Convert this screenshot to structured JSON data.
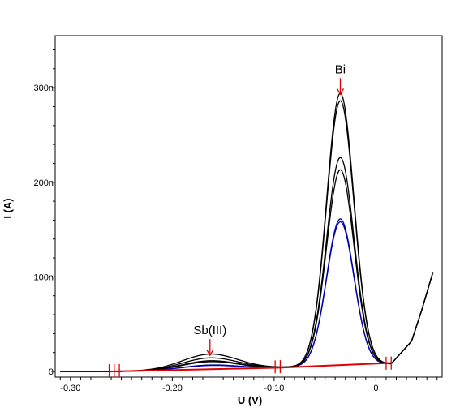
{
  "chart_data": {
    "type": "line",
    "xlabel": "U (V)",
    "ylabel": "I (A)",
    "xlim": [
      -0.315,
      0.065
    ],
    "ylim": [
      -6e-09,
      3.55e-07
    ],
    "grid": false,
    "x_ticks": [
      {
        "value": -0.3,
        "label": "-0.30"
      },
      {
        "value": -0.2,
        "label": "-0.20"
      },
      {
        "value": -0.1,
        "label": "-0.10"
      },
      {
        "value": 0.0,
        "label": "0"
      }
    ],
    "y_ticks": [
      {
        "value": 0,
        "label": "0"
      },
      {
        "value": 1e-07,
        "label": "100n"
      },
      {
        "value": 2e-07,
        "label": "200n"
      },
      {
        "value": 3e-07,
        "label": "300n"
      }
    ],
    "series": [
      {
        "color": "#0000aa",
        "sb_peak": 4.5e-09,
        "bi_peak": 1.55e-07
      },
      {
        "color": "#0000aa",
        "sb_peak": 4e-09,
        "bi_peak": 1.52e-07
      },
      {
        "color": "#000000",
        "sb_peak": 9e-09,
        "bi_peak": 2.07e-07
      },
      {
        "color": "#000000",
        "sb_peak": 8e-09,
        "bi_peak": 2.2e-07
      },
      {
        "color": "#000000",
        "sb_peak": 1.2e-08,
        "bi_peak": 2.8e-07
      },
      {
        "color": "#000000",
        "sb_peak": 1.6e-08,
        "bi_peak": 2.88e-07
      }
    ],
    "peak_shape": {
      "sb_center": -0.163,
      "sb_width": 0.027,
      "bi_center": -0.035,
      "bi_width": 0.0135
    },
    "baseline": [
      [
        -0.31,
        0.0
      ],
      [
        -0.25,
        0.0
      ],
      [
        -0.1,
        4e-09
      ],
      [
        0.015,
        8e-09
      ],
      [
        0.035,
        3.2e-08
      ],
      [
        0.045,
        6.5e-08
      ],
      [
        0.056,
        1.05e-07
      ]
    ],
    "baseline_fit_lines": [
      {
        "x": [
          -0.26,
          -0.095
        ],
        "y": [
          0.0,
          4e-09
        ]
      },
      {
        "x": [
          -0.095,
          0.015
        ],
        "y": [
          4e-09,
          9e-09
        ]
      }
    ],
    "integration_markers": [
      -0.262,
      -0.257,
      -0.252,
      -0.099,
      -0.094,
      0.01,
      0.015
    ],
    "annotations": [
      {
        "label": "Bi",
        "x": -0.035,
        "y": 2.93e-07
      },
      {
        "label": "Sb(III)",
        "x": -0.163,
        "y": 1.7e-08
      }
    ],
    "colors": {
      "axis": "#000000",
      "baseline_fit": "#e00000",
      "markers": "#e00000",
      "arrows": "#e00000"
    }
  }
}
